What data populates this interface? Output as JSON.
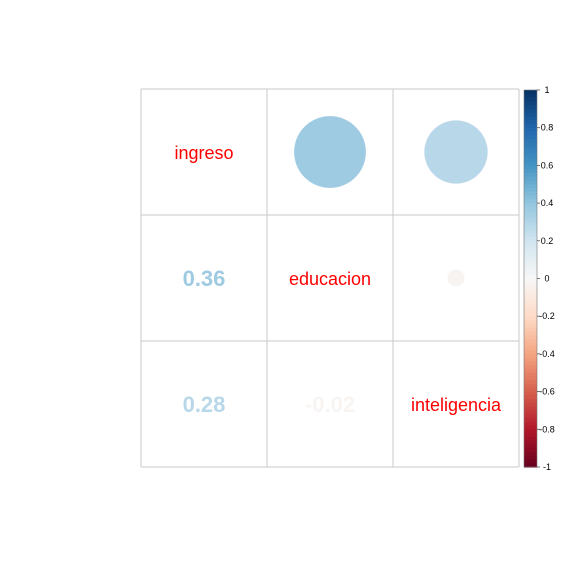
{
  "chart_data": {
    "type": "heatmap",
    "variables": [
      "ingreso",
      "educacion",
      "inteligencia"
    ],
    "matrix": [
      [
        1.0,
        0.36,
        0.28
      ],
      [
        0.36,
        1.0,
        -0.02
      ],
      [
        0.28,
        -0.02,
        1.0
      ]
    ],
    "upper_method": "circle",
    "lower_method": "number",
    "diagonal": "variable-names",
    "color_range": [
      -1,
      1
    ],
    "colorbar_ticks": [
      "1",
      "0.8",
      "0.6",
      "0.4",
      "0.2",
      "0",
      "-0.2",
      "-0.4",
      "-0.6",
      "-0.8",
      "-1"
    ],
    "colorbar_values": [
      1,
      0.8,
      0.6,
      0.4,
      0.2,
      0,
      -0.2,
      -0.4,
      -0.6,
      -0.8,
      -1
    ],
    "colors": {
      "label": "#ff0000",
      "grid": "#c8c8c8",
      "negative_end": "#67001f",
      "neutral": "#f7f7f7",
      "positive_end": "#053061"
    },
    "title": "",
    "xlabel": "",
    "ylabel": ""
  }
}
